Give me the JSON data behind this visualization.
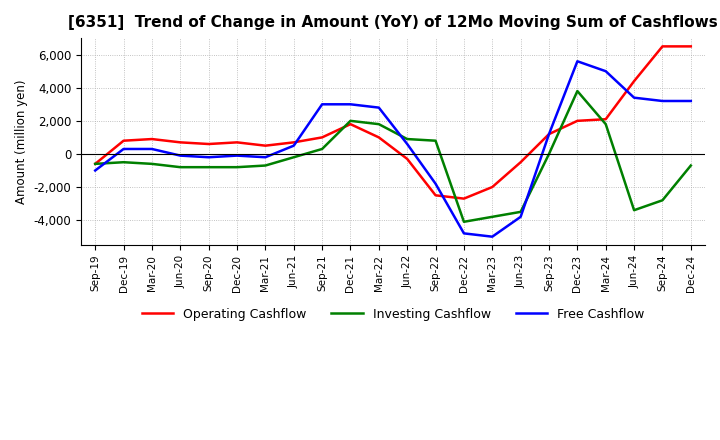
{
  "title": "[6351]  Trend of Change in Amount (YoY) of 12Mo Moving Sum of Cashflows",
  "ylabel": "Amount (million yen)",
  "x_labels": [
    "Sep-19",
    "Dec-19",
    "Mar-20",
    "Jun-20",
    "Sep-20",
    "Dec-20",
    "Mar-21",
    "Jun-21",
    "Sep-21",
    "Dec-21",
    "Mar-22",
    "Jun-22",
    "Sep-22",
    "Dec-22",
    "Mar-23",
    "Jun-23",
    "Sep-23",
    "Dec-23",
    "Mar-24",
    "Jun-24",
    "Sep-24",
    "Dec-24"
  ],
  "operating": [
    -600,
    800,
    900,
    700,
    600,
    700,
    500,
    700,
    1000,
    1800,
    1000,
    -300,
    -2500,
    -2700,
    -2000,
    -500,
    1200,
    2000,
    2100,
    4400,
    6500,
    6500
  ],
  "investing": [
    -600,
    -500,
    -600,
    -800,
    -800,
    -800,
    -700,
    -200,
    300,
    2000,
    1800,
    900,
    800,
    -4100,
    -3800,
    -3500,
    0,
    3800,
    1800,
    -3400,
    -2800,
    -700
  ],
  "free": [
    -1000,
    300,
    300,
    -100,
    -200,
    -100,
    -200,
    500,
    3000,
    3000,
    2800,
    600,
    -1800,
    -4800,
    -5000,
    -3800,
    1200,
    5600,
    5000,
    3400,
    3200,
    3200
  ],
  "ylim": [
    -5500,
    7000
  ],
  "yticks": [
    -4000,
    -2000,
    0,
    2000,
    4000,
    6000
  ],
  "colors": {
    "operating": "#ff0000",
    "investing": "#008000",
    "free": "#0000ff"
  },
  "background_color": "#ffffff",
  "grid_color": "#b0b0b0",
  "title_fontsize": 11,
  "legend_labels": [
    "Operating Cashflow",
    "Investing Cashflow",
    "Free Cashflow"
  ]
}
